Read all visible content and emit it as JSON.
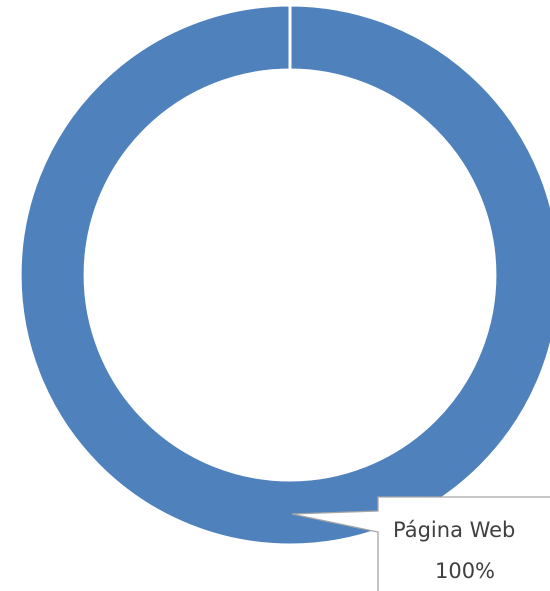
{
  "chart_data": {
    "type": "donut",
    "categories": [
      "Página Web"
    ],
    "values": [
      100
    ],
    "value_labels": [
      "100%"
    ],
    "colors": [
      "#4f81bd"
    ]
  }
}
